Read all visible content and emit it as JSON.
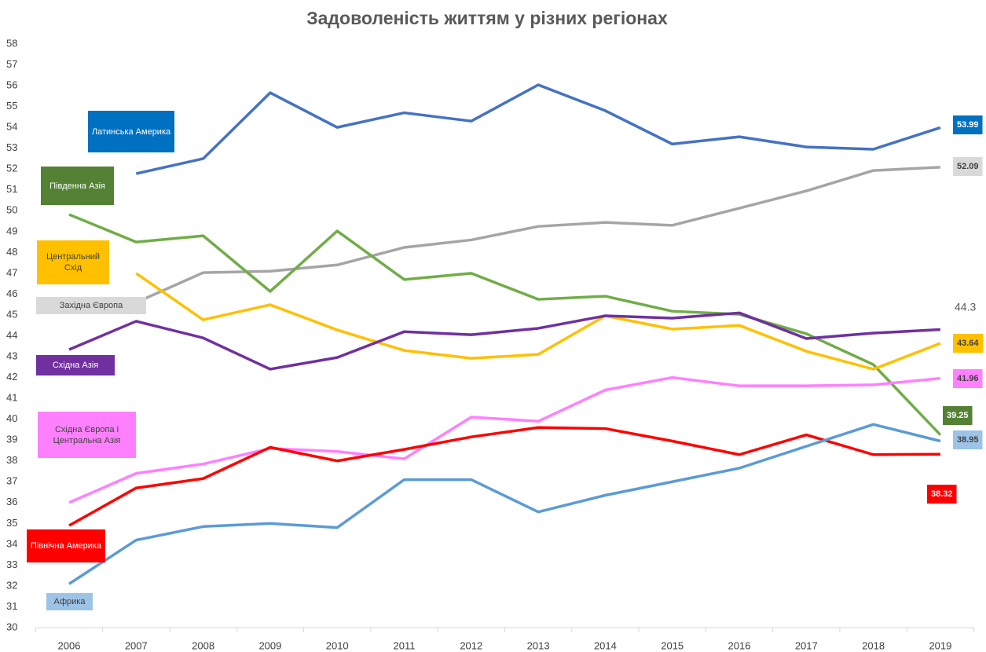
{
  "chart_data": {
    "type": "line",
    "title": "Задоволеність життям у різних регіонах",
    "categories": [
      "2006",
      "2007",
      "2008",
      "2009",
      "2010",
      "2011",
      "2012",
      "2013",
      "2014",
      "2015",
      "2016",
      "2017",
      "2018",
      "2019"
    ],
    "ylim": [
      30,
      58
    ],
    "yticks": [
      30,
      31,
      32,
      33,
      34,
      35,
      36,
      37,
      38,
      39,
      40,
      41,
      42,
      43,
      44,
      45,
      46,
      47,
      48,
      49,
      50,
      51,
      52,
      53,
      54,
      55,
      56,
      57,
      58
    ],
    "grid": false,
    "series": [
      {
        "name": "Латинська Америка",
        "color": "#4472c4",
        "label_color": "#0070c0",
        "values": [
          null,
          51.78,
          52.5,
          55.66,
          54.0,
          54.7,
          54.3,
          56.04,
          54.8,
          53.2,
          53.55,
          53.06,
          52.95,
          53.99
        ]
      },
      {
        "name": "Західна Європа",
        "color": "#a5a5a5",
        "label_color": "#d9d9d9",
        "values": [
          null,
          45.6,
          47.03,
          47.1,
          47.4,
          48.24,
          48.6,
          49.25,
          49.44,
          49.3,
          50.12,
          50.95,
          51.93,
          52.09
        ]
      },
      {
        "name": "Південна Азія",
        "color": "#70ad47",
        "label_color": "#548235",
        "values": [
          49.82,
          48.5,
          48.8,
          46.13,
          49.03,
          46.7,
          47.0,
          45.75,
          45.9,
          45.18,
          45.03,
          44.1,
          42.62,
          39.25
        ]
      },
      {
        "name": "Центральний Схід",
        "color": "#ffc000",
        "label_color": "#ffc000",
        "values": [
          null,
          47.0,
          44.77,
          45.49,
          44.28,
          43.3,
          42.92,
          43.11,
          44.96,
          44.32,
          44.5,
          43.26,
          42.4,
          43.64
        ]
      },
      {
        "name": "Східна Азія",
        "color": "#7030a0",
        "label_color": "#7030a0",
        "values": [
          43.34,
          44.7,
          43.9,
          42.4,
          42.96,
          44.2,
          44.05,
          44.36,
          44.96,
          44.85,
          45.1,
          43.87,
          44.13,
          44.3
        ]
      },
      {
        "name": "Східна Європа і Центральна Азія",
        "color": "#ff80ff",
        "label_color": "#ff80ff",
        "values": [
          36.0,
          37.4,
          37.85,
          38.6,
          38.45,
          38.1,
          40.1,
          39.9,
          41.4,
          42.0,
          41.6,
          41.6,
          41.65,
          41.96
        ]
      },
      {
        "name": "Північна Америка",
        "color": "#ff0000",
        "label_color": "#ff0000",
        "values": [
          34.9,
          36.7,
          37.15,
          38.65,
          38.0,
          38.55,
          39.15,
          39.6,
          39.55,
          38.95,
          38.3,
          39.25,
          38.3,
          38.32
        ]
      },
      {
        "name": "Африка",
        "color": "#5b9bd5",
        "label_color": "#9dc3e6",
        "values": [
          32.1,
          34.2,
          34.85,
          35.0,
          34.8,
          37.1,
          37.1,
          35.55,
          36.35,
          37.0,
          37.65,
          38.7,
          39.75,
          38.95
        ]
      }
    ]
  }
}
